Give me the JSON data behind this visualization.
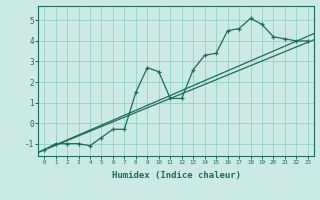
{
  "title": "",
  "xlabel": "Humidex (Indice chaleur)",
  "ylabel": "",
  "bg_color": "#cceae4",
  "grid_color": "#99d5cc",
  "line_color": "#1a6b60",
  "xlim": [
    -0.5,
    23.5
  ],
  "ylim": [
    -1.6,
    5.7
  ],
  "xticks": [
    0,
    1,
    2,
    3,
    4,
    5,
    6,
    7,
    8,
    9,
    10,
    11,
    12,
    13,
    14,
    15,
    16,
    17,
    18,
    19,
    20,
    21,
    22,
    23
  ],
  "yticks": [
    -1,
    0,
    1,
    2,
    3,
    4,
    5
  ],
  "scatter_x": [
    0,
    1,
    2,
    3,
    4,
    5,
    6,
    7,
    8,
    9,
    10,
    11,
    12,
    13,
    14,
    15,
    16,
    17,
    18,
    19,
    20,
    21,
    22,
    23
  ],
  "scatter_y": [
    -1.3,
    -1.0,
    -1.0,
    -1.0,
    -1.1,
    -0.7,
    -0.3,
    -0.3,
    1.5,
    2.7,
    2.5,
    1.2,
    1.2,
    2.6,
    3.3,
    3.4,
    4.5,
    4.6,
    5.1,
    4.8,
    4.2,
    4.1,
    4.0,
    4.0
  ],
  "line1_x": [
    -0.5,
    23.5
  ],
  "line1_y": [
    -1.42,
    4.35
  ],
  "line2_x": [
    -0.5,
    23.5
  ],
  "line2_y": [
    -1.42,
    4.05
  ]
}
